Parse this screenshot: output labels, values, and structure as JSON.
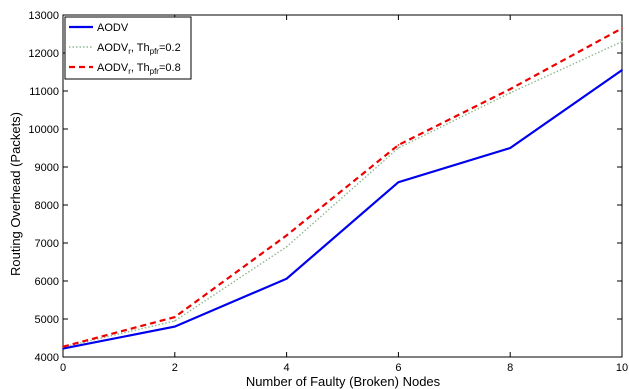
{
  "chart_data": {
    "type": "line",
    "xlabel": "Number of Faulty (Broken) Nodes",
    "ylabel": "Routing Overhead (Packets)",
    "xlim": [
      0,
      10
    ],
    "ylim": [
      4000,
      13000
    ],
    "xticks": [
      0,
      2,
      4,
      6,
      8,
      10
    ],
    "yticks": [
      4000,
      5000,
      6000,
      7000,
      8000,
      9000,
      10000,
      11000,
      12000,
      13000
    ],
    "x": [
      0,
      2,
      4,
      6,
      8,
      10
    ],
    "grid": false,
    "legend_position": "top-left",
    "series": [
      {
        "name": "AODV",
        "name_parts": {
          "base": "AODV",
          "sub": "",
          "mid": "",
          "sub2": "",
          "tail": ""
        },
        "values": [
          4220,
          4800,
          6060,
          8600,
          9500,
          11550
        ],
        "color": "#0000ee",
        "style": "solid"
      },
      {
        "name": "AODVr, Thpfr=0.2",
        "name_parts": {
          "base": "AODV",
          "sub": "r",
          "mid": ", Th",
          "sub2": "pfr",
          "tail": "=0.2"
        },
        "values": [
          4260,
          4950,
          6900,
          9500,
          10950,
          12300
        ],
        "color": "#8fb88f",
        "style": "dotted"
      },
      {
        "name": "AODVr, Thpfr=0.8",
        "name_parts": {
          "base": "AODV",
          "sub": "r",
          "mid": ", Th",
          "sub2": "pfr",
          "tail": "=0.8"
        },
        "values": [
          4270,
          5050,
          7200,
          9580,
          11050,
          12650
        ],
        "color": "#ee0000",
        "style": "dashed"
      }
    ]
  }
}
